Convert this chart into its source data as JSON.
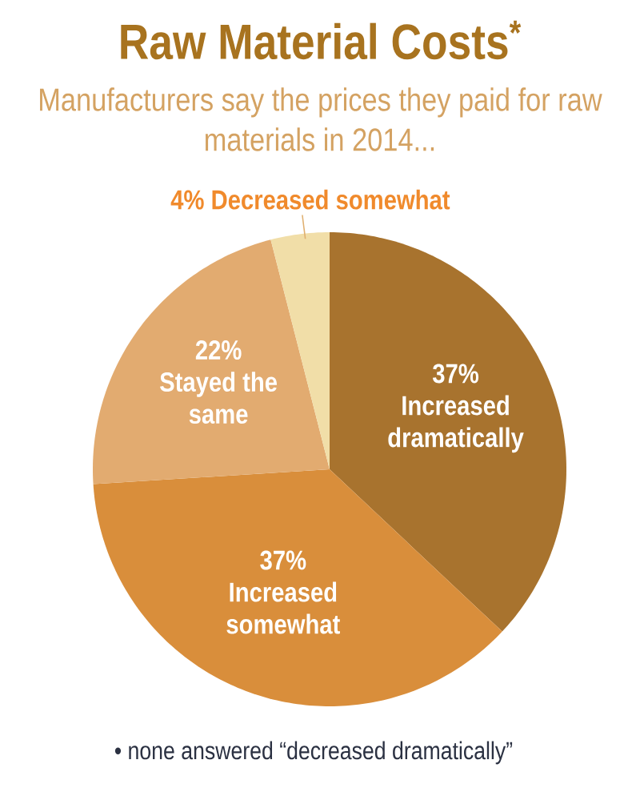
{
  "chart_data": {
    "type": "pie",
    "title": "Raw Material Costs$^{*}$",
    "subtitle": "Manufacturers say the prices they paid for raw materials in 2014...",
    "categories": [
      "Increased dramatically",
      "Increased somewhat",
      "Stayed the same",
      "Decreased somewhat"
    ],
    "values": [
      37,
      37,
      22,
      4
    ],
    "value_labels": [
      "37%",
      "37%",
      "22%",
      "4%"
    ],
    "colors": [
      "#a8732e",
      "#d98e3b",
      "#e2ab70",
      "#f1dea8"
    ],
    "annotations": [
      "• none answered “decreased dramatically”"
    ]
  }
}
